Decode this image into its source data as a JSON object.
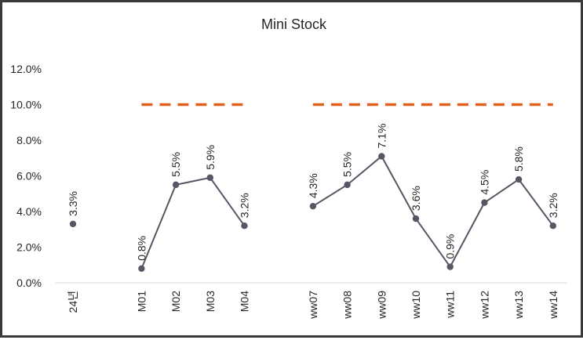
{
  "chart_data": {
    "type": "line",
    "title": "Mini Stock",
    "categories": [
      "24년",
      "",
      "M01",
      "M02",
      "M03",
      "M04",
      "",
      "ww07",
      "ww08",
      "ww09",
      "ww10",
      "ww11",
      "ww12",
      "ww13",
      "ww14"
    ],
    "series": [
      {
        "type": "line",
        "values": [
          3.3,
          null,
          0.8,
          5.5,
          5.9,
          3.2,
          null,
          4.3,
          5.5,
          7.1,
          3.6,
          0.9,
          4.5,
          5.8,
          3.2
        ],
        "labels": [
          "3.3%",
          null,
          "0.8%",
          "5.5%",
          "5.9%",
          "3.2%",
          null,
          "4.3%",
          "5.5%",
          "7.1%",
          "3.6%",
          "0.9%",
          "4.5%",
          "5.8%",
          "3.2%"
        ],
        "color": "#595564"
      },
      {
        "type": "dashed-line",
        "values": [
          null,
          null,
          10.0,
          10.0,
          10.0,
          10.0,
          null,
          10.0,
          10.0,
          10.0,
          10.0,
          10.0,
          10.0,
          10.0,
          10.0
        ],
        "color": "#E0601C"
      }
    ],
    "yticks": [
      "0.0%",
      "2.0%",
      "4.0%",
      "6.0%",
      "8.0%",
      "10.0%",
      "12.0%"
    ],
    "ylim": [
      0,
      12
    ],
    "grid": false,
    "legend": "none"
  }
}
